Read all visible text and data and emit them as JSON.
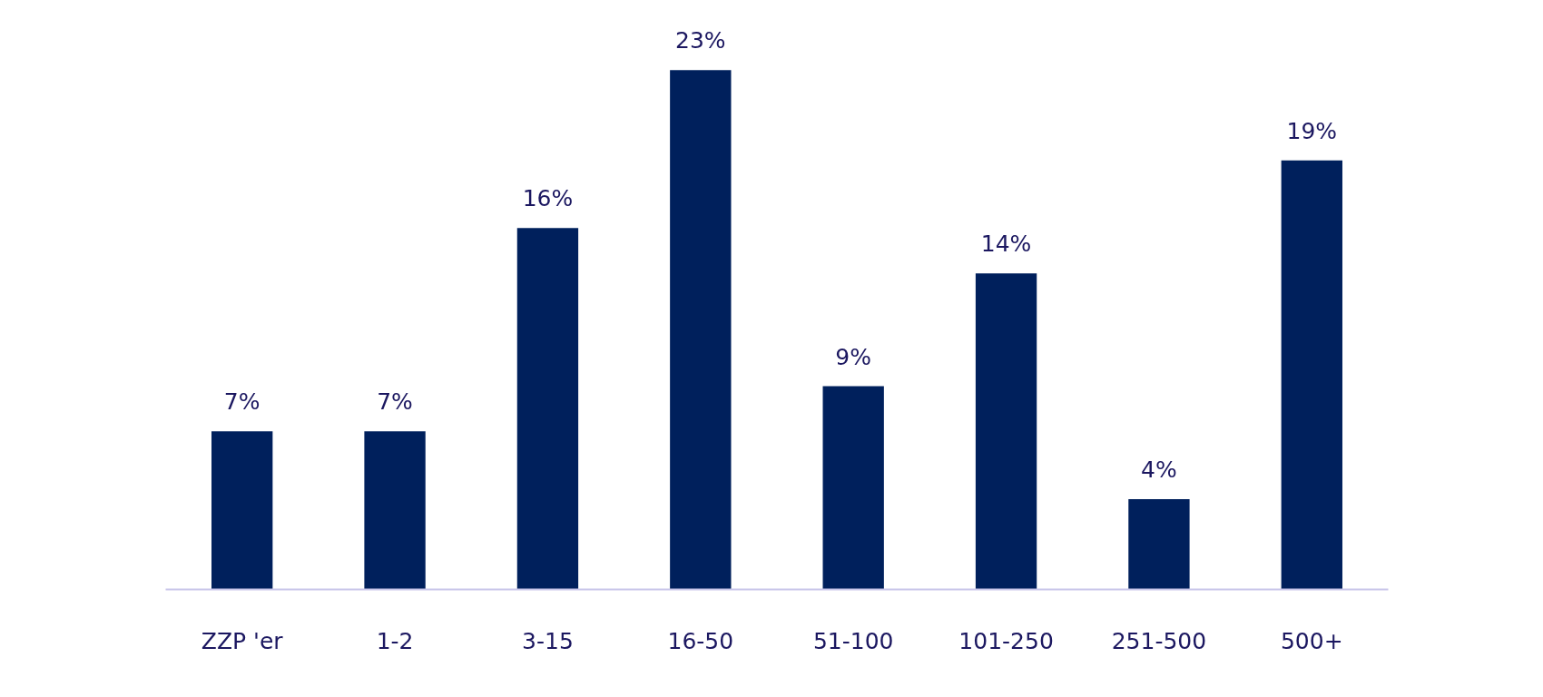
{
  "chart_data": {
    "type": "bar",
    "categories": [
      "ZZP 'er",
      "1-2",
      "3-15",
      "16-50",
      "51-100",
      "101-250",
      "251-500",
      "500+"
    ],
    "values": [
      7,
      7,
      16,
      23,
      9,
      14,
      4,
      19
    ],
    "value_labels": [
      "7%",
      "7%",
      "16%",
      "23%",
      "9%",
      "14%",
      "4%",
      "19%"
    ],
    "color": "#00205c",
    "grid": false
  }
}
